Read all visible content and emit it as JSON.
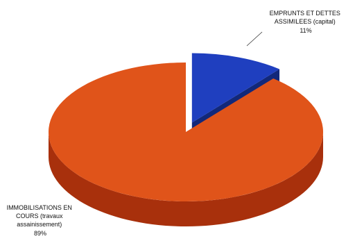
{
  "chart_data": {
    "type": "pie",
    "title": "",
    "slices": [
      {
        "label_lines": [
          "EMPRUNTS ET DETTES",
          "ASSIMILEES (capital)"
        ],
        "percent_label": "11%",
        "value": 11,
        "color": "#1f3fbf",
        "side_color": "#12287a",
        "exploded": true
      },
      {
        "label_lines": [
          "IMMOBILISATIONS EN",
          "COURS (travaux",
          "assainissement)"
        ],
        "percent_label": "89%",
        "value": 89,
        "color": "#e0541a",
        "side_color": "#a8300c",
        "exploded": false
      }
    ],
    "legend": "none"
  }
}
